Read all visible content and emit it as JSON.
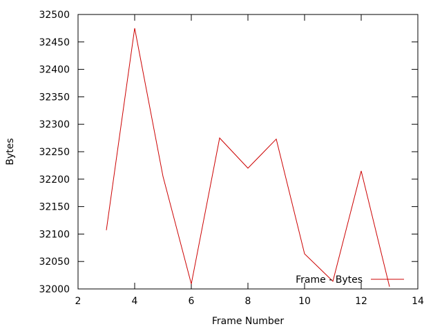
{
  "chart_data": {
    "type": "line",
    "title": "",
    "xlabel": "Frame Number",
    "ylabel": "Bytes",
    "xlim": [
      2,
      14
    ],
    "ylim": [
      32000,
      32500
    ],
    "x_ticks": [
      2,
      4,
      6,
      8,
      10,
      12,
      14
    ],
    "y_ticks": [
      32000,
      32050,
      32100,
      32150,
      32200,
      32250,
      32300,
      32350,
      32400,
      32450,
      32500
    ],
    "grid": false,
    "legend_position": "bottom-right",
    "series": [
      {
        "name": "Frame - Bytes",
        "color": "#cc0000",
        "x": [
          3,
          4,
          5,
          6,
          7,
          8,
          9,
          10,
          11,
          12,
          13
        ],
        "y": [
          32107,
          32475,
          32205,
          32009,
          32275,
          32220,
          32273,
          32064,
          32014,
          32215,
          32004
        ]
      }
    ]
  }
}
